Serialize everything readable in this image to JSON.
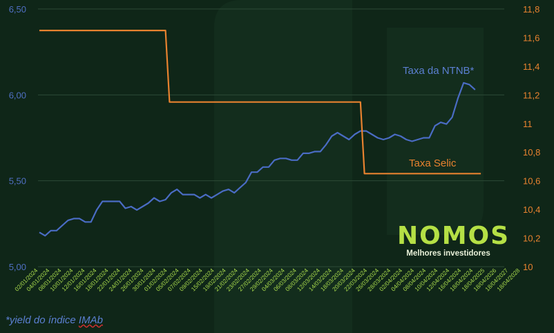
{
  "chart_data": {
    "type": "line",
    "y_left": {
      "ylim": [
        5.0,
        6.5
      ],
      "ticks": [
        "5,00",
        "5,50",
        "6,00",
        "6,50"
      ]
    },
    "y_right": {
      "ylim": [
        10.0,
        11.8
      ],
      "ticks": [
        "10",
        "10,2",
        "10,4",
        "10,6",
        "10,8",
        "11",
        "11,2",
        "11,4",
        "11,6",
        "11,8"
      ]
    },
    "x_ticks": [
      "02/01/2024",
      "04/01/2024",
      "08/01/2024",
      "10/01/2024",
      "12/01/2024",
      "16/01/2024",
      "18/01/2024",
      "22/01/2024",
      "24/01/2024",
      "26/01/2024",
      "30/01/2024",
      "01/02/2024",
      "05/02/2024",
      "07/02/2024",
      "09/02/2024",
      "15/02/2024",
      "19/02/2024",
      "21/02/2024",
      "23/02/2024",
      "27/02/2024",
      "29/02/2024",
      "04/03/2024",
      "06/03/2024",
      "08/03/2024",
      "12/03/2024",
      "14/03/2024",
      "18/03/2024",
      "20/03/2024",
      "22/03/2024",
      "26/03/2024",
      "28/03/2024",
      "02/04/2024",
      "04/04/2024",
      "08/04/2024",
      "10/04/2024",
      "12/04/2024",
      "16/04/2024",
      "18/04/2024",
      "18/04/2025",
      "18/04/2026",
      "18/04/2027",
      "18/04/2028"
    ],
    "series": [
      {
        "name": "Taxa da NTNB*",
        "axis": "left",
        "color": "#4a6cc4",
        "values": [
          5.2,
          5.18,
          5.21,
          5.21,
          5.24,
          5.27,
          5.28,
          5.28,
          5.26,
          5.26,
          5.33,
          5.38,
          5.38,
          5.38,
          5.38,
          5.34,
          5.35,
          5.33,
          5.35,
          5.37,
          5.4,
          5.38,
          5.39,
          5.43,
          5.45,
          5.42,
          5.42,
          5.42,
          5.4,
          5.42,
          5.4,
          5.42,
          5.44,
          5.45,
          5.43,
          5.46,
          5.49,
          5.55,
          5.55,
          5.58,
          5.58,
          5.62,
          5.63,
          5.63,
          5.62,
          5.62,
          5.66,
          5.66,
          5.67,
          5.67,
          5.71,
          5.76,
          5.78,
          5.76,
          5.74,
          5.77,
          5.79,
          5.79,
          5.77,
          5.75,
          5.74,
          5.75,
          5.77,
          5.76,
          5.74,
          5.73,
          5.74,
          5.75,
          5.75,
          5.82,
          5.84,
          5.83,
          5.87,
          5.98,
          6.07,
          6.06,
          6.03
        ]
      },
      {
        "name": "Taxa Selic",
        "axis": "right",
        "color": "#e8822f",
        "points": [
          [
            0,
            11.65
          ],
          [
            22,
            11.65
          ],
          [
            22.7,
            11.15
          ],
          [
            56,
            11.15
          ],
          [
            56.7,
            10.65
          ],
          [
            77,
            10.65
          ]
        ]
      }
    ]
  },
  "logo": {
    "wordmark": "NOMOS",
    "tagline": "Melhores investidores"
  },
  "footnote": {
    "prefix": "*yield do índice ",
    "underlined": "IMAb"
  }
}
